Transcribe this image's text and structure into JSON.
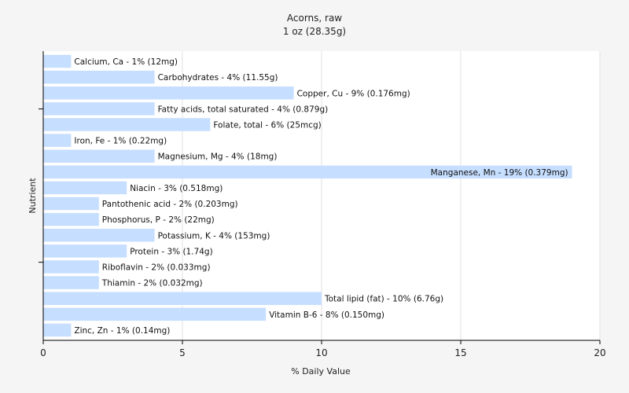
{
  "chart_data": {
    "type": "bar",
    "orientation": "horizontal",
    "title": "Acorns, raw",
    "subtitle": "1 oz (28.35g)",
    "xlabel": "% Daily Value",
    "ylabel": "Nutrient",
    "xlim": [
      0,
      20
    ],
    "xticks": [
      0,
      5,
      10,
      15,
      20
    ],
    "grid": true,
    "bar_color": "#c6deff",
    "categories": [
      "Calcium, Ca",
      "Carbohydrates",
      "Copper, Cu",
      "Fatty acids, total saturated",
      "Folate, total",
      "Iron, Fe",
      "Magnesium, Mg",
      "Manganese, Mn",
      "Niacin",
      "Pantothenic acid",
      "Phosphorus, P",
      "Potassium, K",
      "Protein",
      "Riboflavin",
      "Thiamin",
      "Total lipid (fat)",
      "Vitamin B-6",
      "Zinc, Zn"
    ],
    "values": [
      1,
      4,
      9,
      4,
      6,
      1,
      4,
      19,
      3,
      2,
      2,
      4,
      3,
      2,
      2,
      10,
      8,
      1
    ],
    "labels": [
      "Calcium, Ca - 1% (12mg)",
      "Carbohydrates - 4% (11.55g)",
      "Copper, Cu - 9% (0.176mg)",
      "Fatty acids, total saturated - 4% (0.879g)",
      "Folate, total - 6% (25mcg)",
      "Iron, Fe - 1% (0.22mg)",
      "Magnesium, Mg - 4% (18mg)",
      "Manganese, Mn - 19% (0.379mg)",
      "Niacin - 3% (0.518mg)",
      "Pantothenic acid - 2% (0.203mg)",
      "Phosphorus, P - 2% (22mg)",
      "Potassium, K - 4% (153mg)",
      "Protein - 3% (1.74g)",
      "Riboflavin - 2% (0.033mg)",
      "Thiamin - 2% (0.032mg)",
      "Total lipid (fat) - 10% (6.76g)",
      "Vitamin B-6 - 8% (0.150mg)",
      "Zinc, Zn - 1% (0.14mg)"
    ]
  }
}
